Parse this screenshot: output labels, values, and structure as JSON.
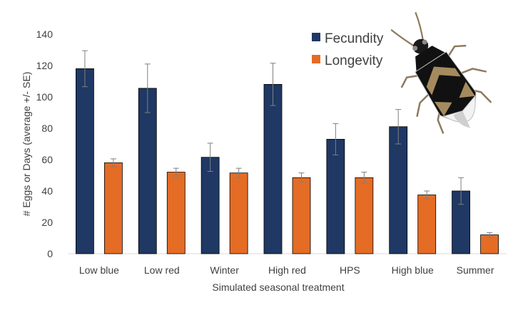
{
  "chart_data": {
    "type": "bar",
    "title": "",
    "xlabel": "Simulated seasonal treatment",
    "ylabel": "# Eggs  or Days (average +/- SE)",
    "ylim": [
      0,
      140
    ],
    "yticks": [
      0,
      20,
      40,
      60,
      80,
      100,
      120,
      140
    ],
    "grid": false,
    "legend_position": "top-right",
    "categories": [
      "Low blue",
      "Low red",
      "Winter",
      "High red",
      "HPS",
      "High blue",
      "Summer"
    ],
    "series": [
      {
        "name": "Fecundity",
        "color": "#1f3864",
        "values": [
          118,
          105.5,
          61.5,
          108,
          73,
          81,
          40
        ],
        "errors": [
          11.5,
          15.5,
          9,
          13.5,
          10,
          11,
          8.5
        ]
      },
      {
        "name": "Longevity",
        "color": "#e46c25",
        "values": [
          58,
          52,
          51.5,
          48.5,
          48.5,
          37.5,
          12
        ],
        "errors": [
          2.5,
          2.5,
          3,
          3,
          3.5,
          2.5,
          1.5
        ]
      }
    ],
    "annotations": [
      {
        "kind": "illustration",
        "icon": "bug-icon"
      }
    ]
  }
}
